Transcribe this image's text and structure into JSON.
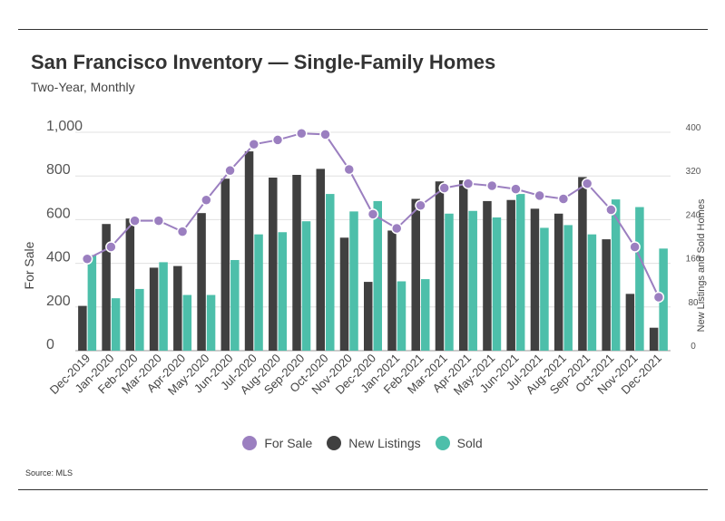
{
  "header": {
    "title": "San Francisco Inventory — Single-Family Homes",
    "subtitle": "Two-Year, Monthly"
  },
  "footer": {
    "source": "Source:  MLS"
  },
  "colors": {
    "for_sale": "#9b7fc0",
    "new_listings": "#404040",
    "sold": "#4dbfaa",
    "grid": "#e0e0e0",
    "axis": "#999999"
  },
  "legend": [
    {
      "name": "For Sale",
      "color": "#9b7fc0"
    },
    {
      "name": "New Listings",
      "color": "#404040"
    },
    {
      "name": "Sold",
      "color": "#4dbfaa"
    }
  ],
  "chart_data": {
    "type": "bar",
    "categories": [
      "Dec-2019",
      "Jan-2020",
      "Feb-2020",
      "Mar-2020",
      "Apr-2020",
      "May-2020",
      "Jun-2020",
      "Jul-2020",
      "Aug-2020",
      "Sep-2020",
      "Oct-2020",
      "Nov-2020",
      "Dec-2020",
      "Jan-2021",
      "Feb-2021",
      "Mar-2021",
      "Apr-2021",
      "May-2021",
      "Jun-2021",
      "Jul-2021",
      "Aug-2021",
      "Sep-2021",
      "Oct-2021",
      "Nov-2021",
      "Dec-2021"
    ],
    "ylabel": "For Sale",
    "y2label": "New Listings and Sold Homes",
    "ylim": [
      0,
      1000
    ],
    "y2lim": [
      0,
      400
    ],
    "yticks": [
      "0",
      "200",
      "400",
      "600",
      "800",
      "1,000"
    ],
    "y2ticks": [
      "0",
      "80",
      "160",
      "240",
      "320",
      "400"
    ],
    "grid": true,
    "legend_position": "bottom",
    "series": [
      {
        "name": "For Sale",
        "type": "line",
        "axis": "left",
        "values": [
          420,
          475,
          595,
          595,
          545,
          690,
          825,
          945,
          965,
          995,
          990,
          830,
          625,
          560,
          665,
          745,
          765,
          755,
          740,
          710,
          695,
          765,
          645,
          475,
          245
        ]
      },
      {
        "name": "New Listings",
        "type": "bar",
        "axis": "right",
        "values": [
          82,
          232,
          242,
          152,
          155,
          252,
          315,
          365,
          317,
          322,
          333,
          207,
          126,
          220,
          278,
          310,
          312,
          274,
          276,
          260,
          251,
          318,
          204,
          104,
          42
        ]
      },
      {
        "name": "Sold",
        "type": "bar",
        "axis": "right",
        "values": [
          175,
          96,
          113,
          162,
          102,
          102,
          166,
          213,
          217,
          237,
          287,
          255,
          274,
          127,
          131,
          251,
          256,
          244,
          287,
          225,
          230,
          213,
          277,
          263,
          187
        ]
      }
    ]
  }
}
